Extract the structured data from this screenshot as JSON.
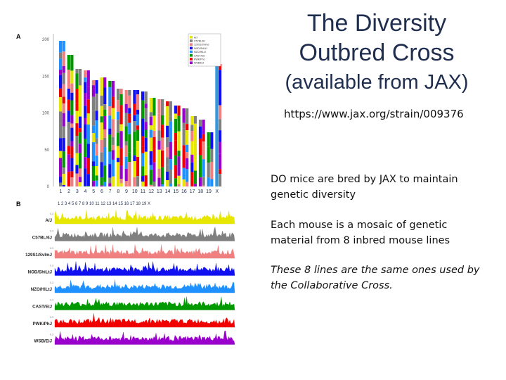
{
  "slide": {
    "title_line1": "The Diversity",
    "title_line2": "Outbred Cross",
    "title_line3": "(available from JAX)",
    "url": "https://www.jax.org/strain/009376",
    "para1": "DO mice are bred by JAX to maintain genetic diversity",
    "para2": "Each mouse is a mosaic of genetic material from 8 inbred mouse lines",
    "para3": "These 8 lines are the same ones used by the Collaborative Cross."
  },
  "figure": {
    "panel_a_label": "A",
    "panel_b_label": "B",
    "y_ticks": [
      "200",
      "150",
      "100",
      "50",
      "0"
    ],
    "chromosomes": [
      "1",
      "2",
      "3",
      "4",
      "5",
      "6",
      "7",
      "8",
      "9",
      "10",
      "11",
      "12",
      "13",
      "14",
      "15",
      "16",
      "17",
      "18",
      "19",
      "X"
    ],
    "legend": [
      "A/J",
      "C57BL/6J",
      "129S1/SvImJ",
      "NOD/ShiLtJ",
      "NZO/HlLtJ",
      "CAST/EiJ",
      "PWK/PhJ",
      "WSB/EiJ"
    ],
    "b_axis": "1  2  3  4  5  6  7  8  9  10  11  12  13  14  15 16 17 18 19  X",
    "b_scale": "0.3",
    "strains": [
      {
        "name": "A/J",
        "color": "#e6e600"
      },
      {
        "name": "C57BL/6J",
        "color": "#808080"
      },
      {
        "name": "129S1/SvImJ",
        "color": "#f08080"
      },
      {
        "name": "NOD/ShiLtJ",
        "color": "#1010f0"
      },
      {
        "name": "NZO/HlLtJ",
        "color": "#1e90ff"
      },
      {
        "name": "CAST/EiJ",
        "color": "#009900"
      },
      {
        "name": "PWK/PhJ",
        "color": "#f00000"
      },
      {
        "name": "WSB/EiJ",
        "color": "#9900cc"
      }
    ]
  }
}
